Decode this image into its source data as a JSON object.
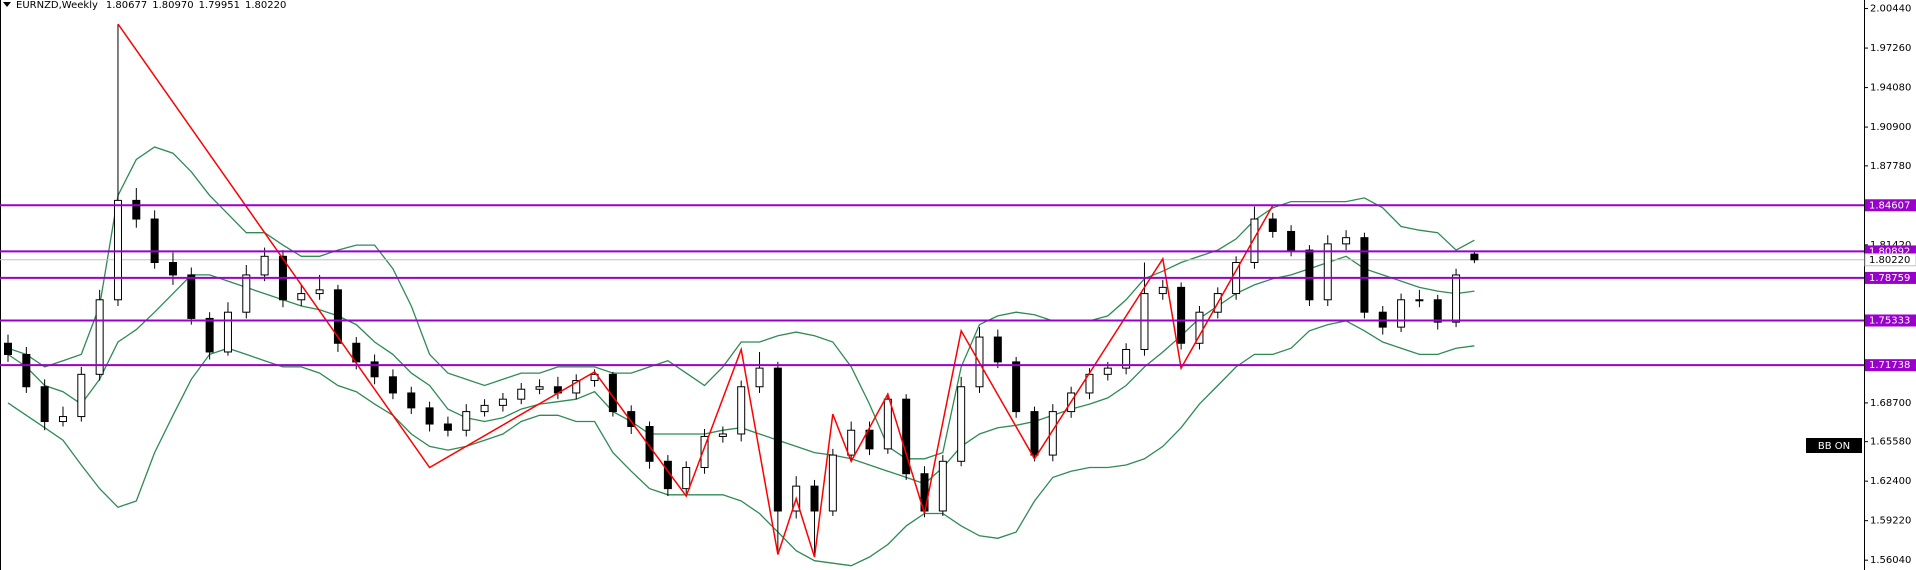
{
  "chart_data": {
    "type": "candlestick",
    "title": "EURNZD,Weekly",
    "title_values": [
      "1.80677",
      "1.80970",
      "1.79951",
      "1.80220"
    ],
    "badge": "BB ON",
    "up_color": "#ffffff",
    "down_color": "#000000",
    "ylim": [
      1.5525,
      2.0113
    ],
    "yticks": [
      {
        "value": 2.0044,
        "label": "2.00440"
      },
      {
        "value": 1.9726,
        "label": "1.97260"
      },
      {
        "value": 1.9408,
        "label": "1.94080"
      },
      {
        "value": 1.909,
        "label": "1.90900"
      },
      {
        "value": 1.8778,
        "label": "1.87780"
      },
      {
        "value": 1.8142,
        "label": "1.81420"
      },
      {
        "value": 1.687,
        "label": "1.68700"
      },
      {
        "value": 1.6558,
        "label": "1.65580"
      },
      {
        "value": 1.624,
        "label": "1.62400"
      },
      {
        "value": 1.5922,
        "label": "1.59220"
      },
      {
        "value": 1.5604,
        "label": "1.56040"
      }
    ],
    "open": [
      1.735,
      1.726,
      1.7,
      1.672,
      1.676,
      1.71,
      1.77,
      1.85,
      1.835,
      1.8,
      1.79,
      1.755,
      1.728,
      1.76,
      1.79,
      1.805,
      1.77,
      1.775,
      1.778,
      1.735,
      1.72,
      1.708,
      1.695,
      1.683,
      1.67,
      1.665,
      1.68,
      1.685,
      1.69,
      1.698,
      1.7,
      1.695,
      1.705,
      1.71,
      1.68,
      1.668,
      1.64,
      1.618,
      1.635,
      1.66,
      1.662,
      1.7,
      1.715,
      1.6,
      1.62,
      1.6,
      1.645,
      1.665,
      1.65,
      1.69,
      1.63,
      1.6,
      1.64,
      1.7,
      1.74,
      1.72,
      1.68,
      1.645,
      1.68,
      1.695,
      1.71,
      1.715,
      1.73,
      1.775,
      1.78,
      1.735,
      1.76,
      1.775,
      1.8,
      1.835,
      1.825,
      1.81,
      1.77,
      1.815,
      1.82,
      1.76,
      1.748,
      1.77,
      1.77,
      1.752,
      1.80677
    ],
    "high": [
      1.742,
      1.732,
      1.706,
      1.684,
      1.716,
      1.778,
      1.992,
      1.86,
      1.842,
      1.808,
      1.796,
      1.76,
      1.768,
      1.798,
      1.812,
      1.81,
      1.782,
      1.79,
      1.782,
      1.74,
      1.726,
      1.714,
      1.7,
      1.688,
      1.676,
      1.686,
      1.69,
      1.695,
      1.703,
      1.706,
      1.708,
      1.71,
      1.714,
      1.712,
      1.685,
      1.672,
      1.645,
      1.64,
      1.666,
      1.668,
      1.705,
      1.728,
      1.72,
      1.628,
      1.625,
      1.65,
      1.672,
      1.672,
      1.695,
      1.694,
      1.636,
      1.645,
      1.708,
      1.748,
      1.746,
      1.724,
      1.684,
      1.686,
      1.7,
      1.715,
      1.72,
      1.735,
      1.8,
      1.786,
      1.784,
      1.765,
      1.78,
      1.805,
      1.845,
      1.84,
      1.83,
      1.814,
      1.822,
      1.826,
      1.824,
      1.765,
      1.775,
      1.778,
      1.774,
      1.795,
      1.8097
    ],
    "low": [
      1.72,
      1.695,
      1.665,
      1.668,
      1.672,
      1.705,
      1.765,
      1.828,
      1.795,
      1.782,
      1.75,
      1.722,
      1.725,
      1.755,
      1.785,
      1.764,
      1.765,
      1.77,
      1.728,
      1.714,
      1.702,
      1.69,
      1.678,
      1.664,
      1.66,
      1.66,
      1.676,
      1.68,
      1.686,
      1.694,
      1.69,
      1.69,
      1.7,
      1.676,
      1.662,
      1.634,
      1.612,
      1.614,
      1.63,
      1.655,
      1.656,
      1.695,
      1.568,
      1.594,
      1.565,
      1.596,
      1.64,
      1.645,
      1.646,
      1.625,
      1.595,
      1.596,
      1.636,
      1.695,
      1.715,
      1.675,
      1.64,
      1.64,
      1.675,
      1.69,
      1.705,
      1.71,
      1.725,
      1.77,
      1.73,
      1.73,
      1.755,
      1.77,
      1.795,
      1.82,
      1.805,
      1.765,
      1.765,
      1.81,
      1.755,
      1.742,
      1.744,
      1.764,
      1.746,
      1.748,
      1.79951
    ],
    "close": [
      1.726,
      1.7,
      1.672,
      1.676,
      1.71,
      1.77,
      1.85,
      1.835,
      1.8,
      1.79,
      1.755,
      1.728,
      1.76,
      1.79,
      1.805,
      1.77,
      1.775,
      1.778,
      1.735,
      1.72,
      1.708,
      1.695,
      1.683,
      1.67,
      1.665,
      1.68,
      1.685,
      1.69,
      1.698,
      1.7,
      1.695,
      1.705,
      1.71,
      1.68,
      1.668,
      1.64,
      1.618,
      1.635,
      1.66,
      1.662,
      1.7,
      1.715,
      1.6,
      1.62,
      1.6,
      1.645,
      1.665,
      1.65,
      1.69,
      1.63,
      1.6,
      1.64,
      1.7,
      1.74,
      1.72,
      1.68,
      1.645,
      1.68,
      1.695,
      1.71,
      1.715,
      1.73,
      1.775,
      1.78,
      1.735,
      1.76,
      1.775,
      1.8,
      1.835,
      1.825,
      1.81,
      1.77,
      1.815,
      1.82,
      1.76,
      1.748,
      1.77,
      1.77,
      1.752,
      1.79,
      1.8022
    ],
    "bands": {
      "color": "#2f8a55",
      "upper": [
        1.731,
        1.726,
        1.716,
        1.721,
        1.726,
        1.765,
        1.854,
        1.883,
        1.893,
        1.888,
        1.873,
        1.854,
        1.839,
        1.824,
        1.824,
        1.814,
        1.805,
        1.805,
        1.81,
        1.814,
        1.814,
        1.795,
        1.765,
        1.726,
        1.711,
        1.706,
        1.701,
        1.706,
        1.711,
        1.711,
        1.716,
        1.716,
        1.716,
        1.711,
        1.711,
        1.716,
        1.721,
        1.711,
        1.701,
        1.716,
        1.736,
        1.736,
        1.741,
        1.744,
        1.741,
        1.736,
        1.716,
        1.686,
        1.652,
        1.642,
        1.642,
        1.647,
        1.716,
        1.75,
        1.757,
        1.76,
        1.758,
        1.753,
        1.753,
        1.753,
        1.757,
        1.77,
        1.787,
        1.793,
        1.8,
        1.805,
        1.81,
        1.819,
        1.834,
        1.844,
        1.849,
        1.849,
        1.849,
        1.849,
        1.852,
        1.844,
        1.829,
        1.826,
        1.824,
        1.81,
        1.818
      ],
      "middle": [
        1.726,
        1.716,
        1.701,
        1.696,
        1.686,
        1.706,
        1.736,
        1.746,
        1.76,
        1.775,
        1.79,
        1.79,
        1.785,
        1.78,
        1.775,
        1.77,
        1.765,
        1.762,
        1.757,
        1.75,
        1.736,
        1.726,
        1.711,
        1.701,
        1.682,
        1.675,
        1.672,
        1.675,
        1.682,
        1.686,
        1.688,
        1.69,
        1.696,
        1.68,
        1.672,
        1.662,
        1.662,
        1.662,
        1.662,
        1.665,
        1.667,
        1.662,
        1.657,
        1.652,
        1.647,
        1.645,
        1.642,
        1.637,
        1.632,
        1.627,
        1.622,
        1.635,
        1.652,
        1.662,
        1.667,
        1.669,
        1.672,
        1.677,
        1.682,
        1.686,
        1.691,
        1.701,
        1.716,
        1.728,
        1.741,
        1.755,
        1.765,
        1.775,
        1.782,
        1.787,
        1.79,
        1.795,
        1.8,
        1.805,
        1.795,
        1.79,
        1.785,
        1.78,
        1.777,
        1.775,
        1.777
      ],
      "lower": [
        1.687,
        1.677,
        1.667,
        1.657,
        1.637,
        1.618,
        1.603,
        1.608,
        1.647,
        1.677,
        1.706,
        1.726,
        1.731,
        1.726,
        1.721,
        1.716,
        1.716,
        1.711,
        1.701,
        1.696,
        1.686,
        1.677,
        1.662,
        1.652,
        1.649,
        1.652,
        1.657,
        1.662,
        1.672,
        1.677,
        1.677,
        1.672,
        1.672,
        1.647,
        1.632,
        1.618,
        1.613,
        1.613,
        1.613,
        1.613,
        1.608,
        1.598,
        1.583,
        1.568,
        1.56,
        1.558,
        1.556,
        1.563,
        1.573,
        1.588,
        1.598,
        1.598,
        1.588,
        1.58,
        1.578,
        1.583,
        1.608,
        1.627,
        1.632,
        1.635,
        1.635,
        1.637,
        1.642,
        1.652,
        1.667,
        1.686,
        1.701,
        1.716,
        1.726,
        1.726,
        1.731,
        1.745,
        1.75,
        1.753,
        1.745,
        1.736,
        1.731,
        1.726,
        1.726,
        1.731,
        1.733
      ]
    },
    "zigzag": {
      "color": "#ff0000",
      "x": [
        6,
        23,
        32,
        37,
        40,
        42,
        43,
        44,
        45,
        46,
        48,
        50,
        52,
        56,
        63,
        64,
        69
      ],
      "values": [
        1.992,
        1.635,
        1.712,
        1.612,
        1.73,
        1.565,
        1.61,
        1.563,
        1.678,
        1.64,
        1.694,
        1.598,
        1.745,
        1.642,
        1.803,
        1.715,
        1.846
      ]
    },
    "levels": {
      "color": "#9900cc",
      "values": [
        1.84607,
        1.80892,
        1.78759,
        1.75333,
        1.71738
      ]
    },
    "current_price": {
      "value": 1.8022,
      "label": "1.80220",
      "color": "#c0c0c0"
    }
  }
}
